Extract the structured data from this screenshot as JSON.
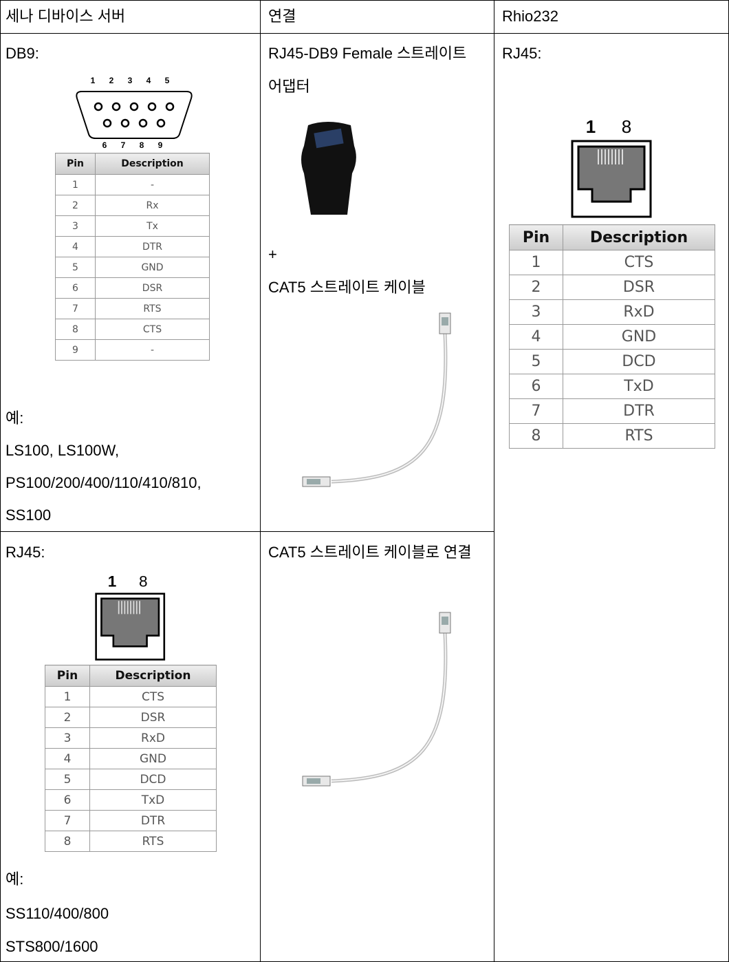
{
  "header": {
    "cells": [
      "세나 디바이스 서버",
      "연결",
      "Rhio232"
    ]
  },
  "rows": [
    {
      "device": {
        "port_label": "DB9:",
        "pins_top": [
          1,
          2,
          3,
          4,
          5
        ],
        "pins_bottom": [
          6,
          7,
          8,
          9
        ],
        "pin_table": {
          "columns": [
            "Pin",
            "Description"
          ],
          "rows": [
            [
              1,
              "-"
            ],
            [
              2,
              "Rx"
            ],
            [
              3,
              "Tx"
            ],
            [
              4,
              "DTR"
            ],
            [
              5,
              "GND"
            ],
            [
              6,
              "DSR"
            ],
            [
              7,
              "RTS"
            ],
            [
              8,
              "CTS"
            ],
            [
              9,
              "-"
            ]
          ]
        },
        "example_label": "예:",
        "models": [
          "LS100, LS100W,",
          "PS100/200/400/110/410/810,",
          "SS100"
        ]
      },
      "connection": {
        "text": "RJ45-DB9 Female 스트레이트 어댑터",
        "plus": "+",
        "cable": "CAT5 스트레이트 케이블"
      }
    },
    {
      "device": {
        "port_label": "RJ45:",
        "pins": [
          1,
          8
        ],
        "pin_table": {
          "columns": [
            "Pin",
            "Description"
          ],
          "rows": [
            [
              1,
              "CTS"
            ],
            [
              2,
              "DSR"
            ],
            [
              3,
              "RxD"
            ],
            [
              4,
              "GND"
            ],
            [
              5,
              "DCD"
            ],
            [
              6,
              "TxD"
            ],
            [
              7,
              "DTR"
            ],
            [
              8,
              "RTS"
            ]
          ]
        },
        "example_label": "예:",
        "models": [
          "SS110/400/800",
          "STS800/1600"
        ]
      },
      "connection": {
        "text": "CAT5 스트레이트 케이블로 연결"
      }
    }
  ],
  "rhio232": {
    "port_label": "RJ45:",
    "pins": [
      1,
      8
    ],
    "pin_table": {
      "columns": [
        "Pin",
        "Description"
      ],
      "rows": [
        [
          1,
          "CTS"
        ],
        [
          2,
          "DSR"
        ],
        [
          3,
          "RxD"
        ],
        [
          4,
          "GND"
        ],
        [
          5,
          "DCD"
        ],
        [
          6,
          "TxD"
        ],
        [
          7,
          "DTR"
        ],
        [
          8,
          "RTS"
        ]
      ]
    }
  }
}
